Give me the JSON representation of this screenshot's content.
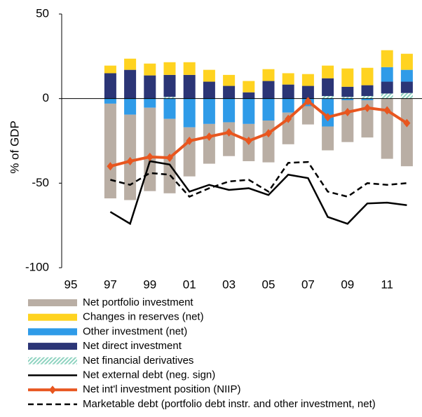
{
  "chart_data": {
    "type": "bar",
    "y_label": "% of GDP",
    "categories": [
      "95",
      null,
      "97",
      null,
      "99",
      null,
      "01",
      null,
      "03",
      null,
      "05",
      null,
      "07",
      null,
      "09",
      null,
      "11",
      null
    ],
    "ylim": [
      -100,
      50
    ],
    "yticks": [
      -100,
      -50,
      0,
      50
    ],
    "series": [
      {
        "name": "Net portfolio investment",
        "type": "bar",
        "color": "#b9aea4",
        "values": [
          null,
          null,
          -56,
          -50.5,
          -49.3,
          -44,
          -29,
          -23.5,
          -20,
          -22,
          -24.7,
          -18.7,
          -10.8,
          -14.1,
          -24.7,
          -22,
          -35.6,
          -40
        ]
      },
      {
        "name": "Changes in reserves (net)",
        "type": "bar",
        "color": "#ffd320",
        "values": [
          null,
          null,
          4.5,
          6.6,
          7,
          7.5,
          7.5,
          7,
          6.5,
          6.7,
          7,
          6.7,
          7,
          7.5,
          10.8,
          10.3,
          10,
          9.5
        ]
      },
      {
        "name": "Other investment (net)",
        "type": "bar",
        "color": "#2f9be8",
        "values": [
          null,
          null,
          -3,
          -9.5,
          -5.4,
          -12,
          -17,
          -15,
          -14,
          -15,
          -13,
          -8.3,
          -4.5,
          -16.5,
          -1,
          -1,
          8.6,
          7
        ]
      },
      {
        "name": "Net direct investment",
        "type": "bar",
        "color": "#2b3576",
        "values": [
          null,
          null,
          15,
          17,
          13.7,
          13,
          14,
          10,
          7.5,
          3.7,
          10.4,
          8.3,
          7.5,
          10.5,
          6,
          6.4,
          7,
          6.7
        ]
      },
      {
        "name": "Net financial derivatives",
        "type": "bar",
        "color": "#8fd3c0",
        "hatch": true,
        "values": [
          null,
          null,
          0,
          0,
          0,
          1,
          0,
          0,
          0,
          0,
          0,
          0,
          0,
          1.5,
          1,
          1.5,
          3,
          3.3
        ]
      },
      {
        "name": "Net external debt (neg. sign)",
        "type": "line",
        "color": "#000000",
        "values": [
          null,
          null,
          -67,
          -74,
          -37,
          -39,
          -55,
          -51,
          -54,
          -53,
          -57,
          -45,
          -47,
          -70,
          -74,
          -62,
          -61.5,
          -63
        ]
      },
      {
        "name": "Net int'l investment position (NIIP)",
        "type": "line",
        "color": "#e8561f",
        "marker": true,
        "values": [
          null,
          null,
          -40,
          -37,
          -34.5,
          -35,
          -25,
          -22.5,
          -20,
          -25,
          -20.5,
          -12,
          -1.5,
          -11,
          -8,
          -5.5,
          -7,
          -14.5
        ]
      },
      {
        "name": "Marketable debt (portfolio debt instr. and other investment, net)",
        "type": "line",
        "color": "#000000",
        "dash": true,
        "values": [
          null,
          null,
          -48,
          -51,
          -44,
          -45,
          -58,
          -53,
          -49,
          -48,
          -55,
          -38,
          -37.5,
          -55,
          -58,
          -50,
          -51,
          -50
        ]
      }
    ]
  }
}
